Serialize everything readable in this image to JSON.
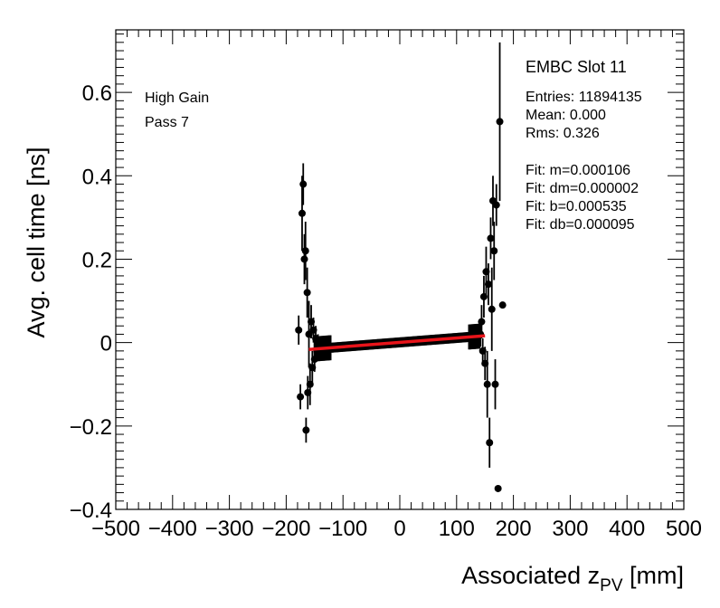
{
  "chart_data": {
    "type": "scatter",
    "xlabel": "Associated z",
    "xlabel_sub": "PV",
    "xlabel_unit": " [mm]",
    "ylabel": "Avg. cell time [ns]",
    "xlim": [
      -500,
      500
    ],
    "ylim": [
      -0.4,
      0.75
    ],
    "xticks": [
      -500,
      -400,
      -300,
      -200,
      -100,
      0,
      100,
      200,
      300,
      400,
      500
    ],
    "xtick_labels": [
      "−500",
      "−400",
      "−300",
      "−200",
      "−100",
      "0",
      "100",
      "200",
      "300",
      "400",
      "500"
    ],
    "yticks": [
      -0.4,
      -0.2,
      0,
      0.2,
      0.4,
      0.6
    ],
    "ytick_labels": [
      "−0.4",
      "−0.2",
      "0",
      "0.2",
      "0.4",
      "0.6"
    ],
    "grid": false,
    "annotations": [
      "High Gain",
      "Pass 7"
    ],
    "stats_box": {
      "title": "EMBC Slot 11",
      "lines": [
        "Entries: 11894135",
        "Mean: 0.000",
        "Rms: 0.326",
        "",
        "Fit: m=0.000106",
        "Fit: dm=0.000002",
        "Fit: b=0.000535",
        "Fit: db=0.000095"
      ]
    },
    "fit_line": {
      "color": "#e8141a",
      "x": [
        -160,
        150
      ],
      "slope": 0.000106,
      "intercept": 0.000535
    },
    "series": [
      {
        "marker_color": "#000000",
        "points": [
          {
            "x": -178,
            "y": 0.03,
            "err": 0.035
          },
          {
            "x": -175,
            "y": -0.13,
            "err": 0.03
          },
          {
            "x": -172,
            "y": 0.31,
            "err": 0.09
          },
          {
            "x": -170,
            "y": 0.38,
            "err": 0.05
          },
          {
            "x": -168,
            "y": 0.2,
            "err": 0.06
          },
          {
            "x": -166,
            "y": 0.22,
            "err": 0.07
          },
          {
            "x": -165,
            "y": -0.21,
            "err": 0.03
          },
          {
            "x": -163,
            "y": 0.12,
            "err": 0.06
          },
          {
            "x": -162,
            "y": -0.12,
            "err": 0.04
          },
          {
            "x": -160,
            "y": 0.02,
            "err": 0.08
          },
          {
            "x": -158,
            "y": -0.1,
            "err": 0.05
          },
          {
            "x": -156,
            "y": 0.05,
            "err": 0.04
          },
          {
            "x": -154,
            "y": -0.06,
            "err": 0.04
          },
          {
            "x": -152,
            "y": 0.03,
            "err": 0.03
          },
          {
            "x": -150,
            "y": -0.04,
            "err": 0.03
          },
          {
            "x": -148,
            "y": 0.01,
            "err": 0.03
          },
          {
            "x": -146,
            "y": -0.02,
            "err": 0.02
          },
          {
            "x": -144,
            "y": 0.0,
            "err": 0.02
          },
          {
            "x": 142,
            "y": 0.02,
            "err": 0.03
          },
          {
            "x": 144,
            "y": 0.05,
            "err": 0.04
          },
          {
            "x": 146,
            "y": -0.02,
            "err": 0.03
          },
          {
            "x": 148,
            "y": 0.11,
            "err": 0.05
          },
          {
            "x": 150,
            "y": -0.05,
            "err": 0.04
          },
          {
            "x": 152,
            "y": 0.17,
            "err": 0.06
          },
          {
            "x": 154,
            "y": -0.1,
            "err": 0.08
          },
          {
            "x": 156,
            "y": 0.14,
            "err": 0.05
          },
          {
            "x": 158,
            "y": -0.24,
            "err": 0.06
          },
          {
            "x": 160,
            "y": 0.25,
            "err": 0.05
          },
          {
            "x": 162,
            "y": 0.08,
            "err": 0.1
          },
          {
            "x": 164,
            "y": 0.34,
            "err": 0.06
          },
          {
            "x": 166,
            "y": 0.22,
            "err": 0.07
          },
          {
            "x": 168,
            "y": -0.1,
            "err": 0.06
          },
          {
            "x": 170,
            "y": 0.33,
            "err": 0.05
          },
          {
            "x": 173,
            "y": -0.35,
            "err": 0.0
          },
          {
            "x": 176,
            "y": 0.53,
            "err": 0.19
          },
          {
            "x": 181,
            "y": 0.09,
            "err": 0.0
          }
        ]
      }
    ]
  }
}
